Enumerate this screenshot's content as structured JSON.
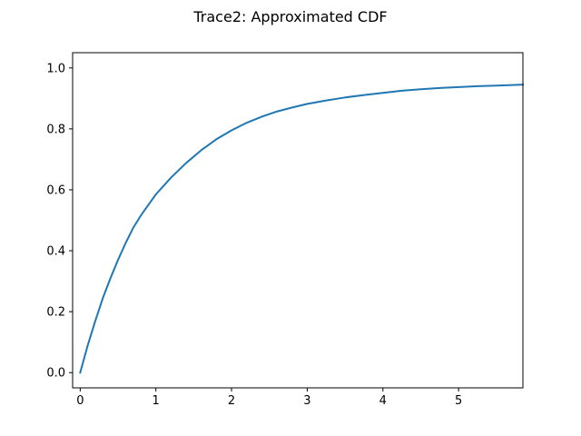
{
  "chart_data": {
    "type": "line",
    "title": "Trace2: Approximated CDF",
    "xlabel": "",
    "ylabel": "",
    "xlim": [
      -0.1,
      5.85
    ],
    "ylim": [
      -0.05,
      1.05
    ],
    "xticks": [
      0,
      1,
      2,
      3,
      4,
      5
    ],
    "xtick_labels": [
      "0",
      "1",
      "2",
      "3",
      "4",
      "5"
    ],
    "yticks": [
      0.0,
      0.2,
      0.4,
      0.6,
      0.8,
      1.0
    ],
    "ytick_labels": [
      "0.0",
      "0.2",
      "0.4",
      "0.6",
      "0.8",
      "1.0"
    ],
    "grid": false,
    "series": [
      {
        "color": "#1f77b4",
        "x": [
          0,
          0.1,
          0.2,
          0.3,
          0.4,
          0.5,
          0.6,
          0.7,
          0.8,
          0.9,
          1.0,
          1.2,
          1.4,
          1.6,
          1.8,
          2.0,
          2.2,
          2.4,
          2.6,
          2.8,
          3.0,
          3.25,
          3.5,
          3.75,
          4.0,
          4.25,
          4.5,
          4.75,
          5.0,
          5.25,
          5.5,
          5.85
        ],
        "y": [
          0.0,
          0.09,
          0.17,
          0.245,
          0.31,
          0.37,
          0.425,
          0.475,
          0.515,
          0.55,
          0.585,
          0.64,
          0.688,
          0.73,
          0.766,
          0.795,
          0.82,
          0.84,
          0.857,
          0.87,
          0.882,
          0.893,
          0.903,
          0.911,
          0.918,
          0.925,
          0.93,
          0.934,
          0.937,
          0.94,
          0.942,
          0.945
        ]
      }
    ]
  }
}
